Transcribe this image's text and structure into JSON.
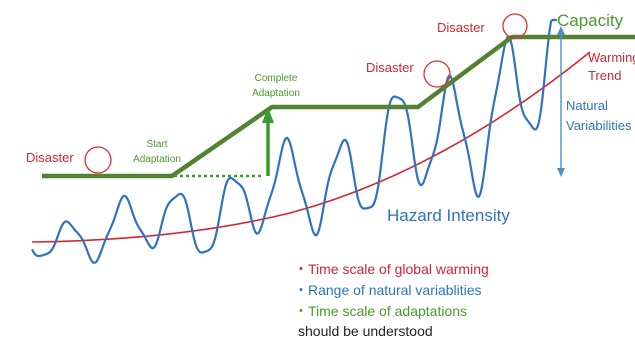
{
  "labels": {
    "capacity": "Capacity",
    "warming_trend_line1": "Warming",
    "warming_trend_line2": "Trend",
    "natural_var_line1": "Natural",
    "natural_var_line2": "Variabilities",
    "hazard_intensity": "Hazard Intensity",
    "disaster": "Disaster",
    "start_adaptation_line1": "Start",
    "start_adaptation_line2": "Adaptation",
    "complete_adaptation_line1": "Complete",
    "complete_adaptation_line2": "Adaptation"
  },
  "notes": {
    "item1": "・Time scale of global warming",
    "item2": "・Range of natural variablities",
    "item3": "・Time scale of adaptations",
    "item4": "should be understood"
  },
  "colors": {
    "hazard_wave": "#2f73c0",
    "capacity_line": "#548235",
    "warming_trend": "#d9232e",
    "disaster_circle": "#e0312f",
    "disaster_text": "#d9232e",
    "note_red": "#d9232e",
    "note_blue": "#2f73c0",
    "note_green": "#4a9a2e",
    "note_black": "#222222",
    "range_arrow": "#4a90c8"
  }
}
